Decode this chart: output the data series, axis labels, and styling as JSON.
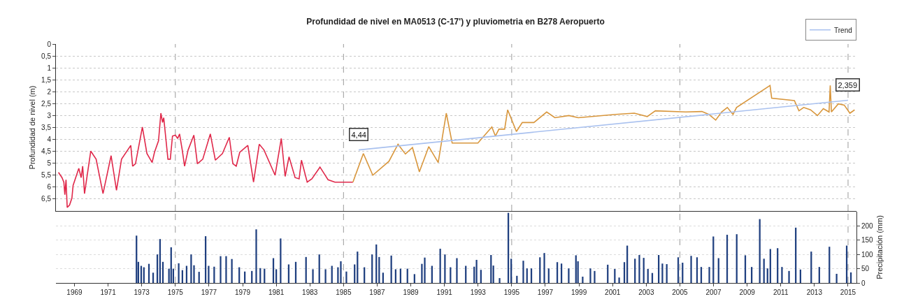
{
  "chart_data": [
    {
      "type": "line",
      "title": "Profundidad de nivel en MA0513 (C-17') y pluviometria en B278 Aeropuerto",
      "ylabel": "Profundidad de nivel (m)",
      "tick_labels": "y",
      "xlim": [
        1967.9,
        2015.5
      ],
      "xticks": [
        1969,
        1971,
        1973,
        1975,
        1977,
        1979,
        1981,
        1983,
        1985,
        1987,
        1989,
        1991,
        1993,
        1995,
        1997,
        1999,
        2001,
        2003,
        2005,
        2007,
        2009,
        2011,
        2013,
        2015
      ],
      "ylim": [
        7,
        0
      ],
      "yticks": [
        0,
        {
          "value": 0.5,
          "label": "0,5"
        },
        1,
        {
          "value": 1.5,
          "label": "1,5"
        },
        2,
        {
          "value": 2.5,
          "label": "2,5"
        },
        3,
        {
          "value": 3.5,
          "label": "3,5"
        },
        4,
        {
          "value": 4.5,
          "label": "4,5"
        },
        5,
        {
          "value": 5.5,
          "label": "5,5"
        },
        6,
        {
          "value": 6.5,
          "label": "6,5"
        }
      ],
      "grid": "y",
      "legend": "top right",
      "series": [
        {
          "color": "#e0284a",
          "x": [
            1968.05,
            1968.26,
            1968.37,
            1968.43,
            1968.5,
            1968.57,
            1968.71,
            1968.85,
            1968.92,
            1969.26,
            1969.4,
            1969.49,
            1969.6,
            1969.74,
            1969.97,
            1970.29,
            1970.7,
            1971.18,
            1971.5,
            1971.8,
            1972.35,
            1972.46,
            1972.63,
            1973.04,
            1973.31,
            1973.62,
            1973.76,
            1974.0,
            1974.14,
            1974.24,
            1974.31,
            1974.56,
            1974.7,
            1974.83,
            1975.0,
            1975.14,
            1975.25,
            1975.41,
            1975.55,
            1975.76,
            1976.1,
            1976.31,
            1976.63,
            1977.08,
            1977.38,
            1977.8,
            1978.21,
            1978.42,
            1978.62,
            1978.83,
            1979.31,
            1979.65,
            1979.99,
            1980.27,
            1980.93,
            1981.3,
            1981.53,
            1981.76,
            1982.12,
            1982.36,
            1982.5,
            1982.84,
            1983.12,
            1983.6,
            1984.08,
            1984.49,
            1984.83,
            1985.06,
            1985.56
          ],
          "values": [
            5.38,
            5.6,
            5.79,
            6.32,
            5.69,
            6.85,
            6.75,
            6.46,
            5.93,
            5.21,
            5.6,
            5.12,
            6.27,
            5.6,
            4.49,
            4.83,
            6.27,
            4.68,
            6.13,
            4.83,
            4.25,
            5.12,
            5.02,
            3.48,
            4.59,
            4.97,
            4.54,
            4.06,
            2.9,
            3.29,
            3.09,
            4.83,
            4.83,
            3.86,
            3.82,
            3.96,
            3.77,
            4.44,
            5.12,
            4.44,
            3.82,
            5.02,
            4.83,
            3.77,
            4.87,
            4.59,
            3.91,
            5.02,
            5.12,
            4.54,
            4.25,
            5.79,
            4.2,
            4.44,
            5.5,
            3.96,
            5.55,
            4.73,
            5.6,
            5.65,
            4.87,
            5.79,
            5.65,
            5.16,
            5.69,
            5.79,
            5.79,
            5.79,
            5.79
          ]
        },
        {
          "color": "#d8963c",
          "x": [
            1985.56,
            1986.18,
            1986.74,
            1987.7,
            1988.24,
            1988.68,
            1989.1,
            1989.51,
            1990.07,
            1990.63,
            1991.11,
            1991.46,
            1992.99,
            1993.82,
            1994.03,
            1994.24,
            1994.58,
            1994.76,
            1995.28,
            1995.63,
            1996.32,
            1997.08,
            1997.57,
            1998.4,
            1998.96,
            2001.18,
            2002.29,
            2003.06,
            2003.54,
            2005.35,
            2006.31,
            2006.72,
            2007.13,
            2007.48,
            2007.82,
            2008.16,
            2008.37,
            2010.36,
            2010.46,
            2011.81,
            2012.08,
            2012.36,
            2012.77,
            2013.18,
            2013.53,
            2013.87,
            2013.94,
            2014.01,
            2014.42,
            2014.77,
            2015.11,
            2015.39
          ],
          "values": [
            5.79,
            4.59,
            5.5,
            4.92,
            4.2,
            4.61,
            4.34,
            5.36,
            4.3,
            4.97,
            2.9,
            4.15,
            4.15,
            3.48,
            3.86,
            3.57,
            3.57,
            2.76,
            3.67,
            3.29,
            3.29,
            2.85,
            3.09,
            3.0,
            3.09,
            2.95,
            2.9,
            3.04,
            2.8,
            2.85,
            2.83,
            2.95,
            3.19,
            2.85,
            2.66,
            2.95,
            2.66,
            1.74,
            2.27,
            2.37,
            2.8,
            2.66,
            2.76,
            3.0,
            2.71,
            2.85,
            1.74,
            2.85,
            2.51,
            2.56,
            2.9,
            2.76
          ]
        },
        {
          "name": "Trend",
          "color": "#a9c1ef",
          "x": [
            1985.9,
            2015.0
          ],
          "values": [
            4.44,
            2.359
          ]
        }
      ],
      "ref_lines": [
        {
          "axis": "x",
          "value": 1975,
          "color": "#9a9a9a",
          "line_style": "dashed"
        },
        {
          "axis": "x",
          "value": 1985,
          "color": "#9a9a9a",
          "line_style": "dashed"
        },
        {
          "axis": "x",
          "value": 1995,
          "color": "#9a9a9a",
          "line_style": "dashed"
        },
        {
          "axis": "x",
          "value": 2005,
          "color": "#9a9a9a",
          "line_style": "dashed"
        },
        {
          "axis": "x",
          "value": 2015,
          "color": "#9a9a9a",
          "line_style": "dashed"
        }
      ],
      "annotations": [
        {
          "text": "4,44",
          "x": 1985.9,
          "y": 4.44
        },
        {
          "text": "2,359",
          "x": 2015.0,
          "y": 2.359
        }
      ]
    },
    {
      "type": "bar",
      "y2label": "Precipitación (mm)",
      "xlim": [
        1967.9,
        2015.5
      ],
      "xticks": [
        1969,
        1971,
        1973,
        1975,
        1977,
        1979,
        1981,
        1983,
        1985,
        1987,
        1989,
        1991,
        1993,
        1995,
        1997,
        1999,
        2001,
        2003,
        2005,
        2007,
        2009,
        2011,
        2013,
        2015
      ],
      "y2lim": [
        0,
        250
      ],
      "y2ticks": [
        0,
        50,
        100,
        150,
        200
      ],
      "grid": "y",
      "series": [
        {
          "axis": "y2",
          "color": "#1f3f7f",
          "x": [
            1972.69,
            1972.8,
            1972.97,
            1973.13,
            1973.43,
            1973.68,
            1973.93,
            1974.09,
            1974.26,
            1974.62,
            1974.75,
            1974.88,
            1975.2,
            1975.42,
            1975.67,
            1975.94,
            1976.11,
            1976.41,
            1976.8,
            1976.98,
            1977.31,
            1977.69,
            1978.02,
            1978.36,
            1978.8,
            1979.13,
            1979.55,
            1979.81,
            1980.05,
            1980.3,
            1980.83,
            1981.0,
            1981.26,
            1981.74,
            1982.16,
            1982.77,
            1983.18,
            1983.56,
            1983.93,
            1984.31,
            1984.67,
            1984.84,
            1985.17,
            1985.66,
            1985.83,
            1986.24,
            1986.7,
            1986.95,
            1987.12,
            1987.35,
            1987.84,
            1988.1,
            1988.39,
            1988.8,
            1989.22,
            1989.66,
            1989.83,
            1990.26,
            1990.75,
            1991.03,
            1991.36,
            1991.74,
            1992.27,
            1992.77,
            1992.91,
            1993.17,
            1993.77,
            1993.91,
            1994.28,
            1994.8,
            1994.97,
            1995.31,
            1995.69,
            1995.91,
            1996.17,
            1996.68,
            1996.94,
            1997.2,
            1997.71,
            1997.96,
            1998.39,
            1998.82,
            1998.94,
            1999.22,
            1999.68,
            1999.93,
            2000.71,
            2001.13,
            2001.39,
            2001.7,
            2001.87,
            2002.33,
            2002.59,
            2002.85,
            2003.1,
            2003.36,
            2003.74,
            2003.96,
            2004.22,
            2004.9,
            2005.16,
            2005.67,
            2006.02,
            2006.27,
            2006.75,
            2006.99,
            2007.3,
            2007.81,
            2008.38,
            2008.89,
            2009.27,
            2009.75,
            2010.0,
            2010.21,
            2010.38,
            2010.81,
            2011.07,
            2011.49,
            2011.89,
            2012.17,
            2012.81,
            2013.29,
            2013.89,
            2014.32,
            2014.92,
            2015.17
          ],
          "values": [
            166,
            74,
            60,
            55,
            67,
            36,
            100,
            154,
            74,
            50,
            125,
            50,
            69,
            45,
            60,
            100,
            62,
            39,
            164,
            60,
            57,
            94,
            94,
            84,
            55,
            40,
            42,
            188,
            52,
            50,
            87,
            48,
            156,
            65,
            74,
            91,
            48,
            100,
            48,
            60,
            55,
            76,
            40,
            65,
            110,
            55,
            100,
            135,
            91,
            36,
            96,
            48,
            50,
            50,
            31,
            67,
            89,
            60,
            120,
            100,
            55,
            87,
            60,
            57,
            81,
            46,
            98,
            61,
            17,
            246,
            85,
            25,
            78,
            51,
            51,
            90,
            105,
            51,
            73,
            68,
            51,
            97,
            76,
            22,
            51,
            42,
            64,
            49,
            19,
            73,
            131,
            85,
            98,
            88,
            49,
            35,
            98,
            68,
            66,
            90,
            71,
            95,
            90,
            56,
            56,
            163,
            87,
            169,
            171,
            97,
            56,
            224,
            85,
            51,
            119,
            122,
            56,
            42,
            194,
            47,
            110,
            56,
            127,
            32,
            131,
            37
          ]
        }
      ],
      "ref_lines": [
        {
          "axis": "x",
          "value": 1975,
          "color": "#9a9a9a",
          "line_style": "dashed"
        },
        {
          "axis": "x",
          "value": 1985,
          "color": "#9a9a9a",
          "line_style": "dashed"
        },
        {
          "axis": "x",
          "value": 1995,
          "color": "#9a9a9a",
          "line_style": "dashed"
        },
        {
          "axis": "x",
          "value": 2005,
          "color": "#9a9a9a",
          "line_style": "dashed"
        },
        {
          "axis": "x",
          "value": 2015,
          "color": "#9a9a9a",
          "line_style": "dashed"
        }
      ]
    }
  ]
}
